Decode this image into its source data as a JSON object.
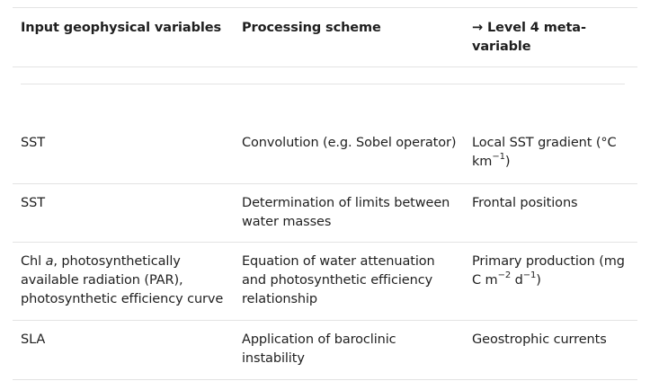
{
  "table": {
    "headers": {
      "col1": "Input geophysical variables",
      "col2": "Processing scheme",
      "col3_line1": "→ Level 4 meta-",
      "col3_line2": "variable"
    },
    "rows": [
      {
        "input": "SST",
        "processing": "Convolution (e.g. Sobel operator)",
        "output_line1": "Local SST gradient (°C",
        "output_line2_pre": "km",
        "output_line2_sup": "−1",
        "output_line2_post": ")"
      },
      {
        "input": "SST",
        "processing_line1": "Determination of limits between",
        "processing_line2": "water masses",
        "output": "Frontal positions"
      },
      {
        "input_pre": "Chl ",
        "input_italic": "a",
        "input_line1_post": ", photosynthetically",
        "input_line2": "available radiation (PAR),",
        "input_line3": "photosynthetic efficiency curve",
        "processing_line1": "Equation of water attenuation",
        "processing_line2": "and photosynthetic efficiency",
        "processing_line3": "relationship",
        "output_line1": "Primary production (mg",
        "output_line2_a": "C m",
        "output_line2_sup1": "−2",
        "output_line2_b": " d",
        "output_line2_sup2": "−1",
        "output_line2_c": ")"
      },
      {
        "input": "SLA",
        "processing_line1": "Application of baroclinic",
        "processing_line2": "instability",
        "output": "Geostrophic currents"
      }
    ]
  }
}
